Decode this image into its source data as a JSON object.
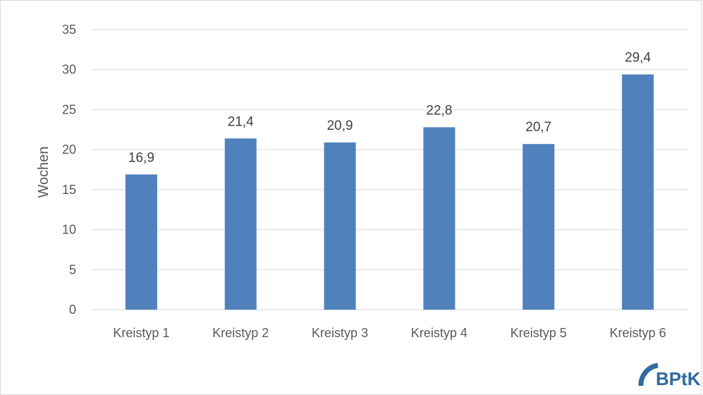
{
  "chart_data": {
    "type": "bar",
    "categories": [
      "Kreistyp 1",
      "Kreistyp 2",
      "Kreistyp 3",
      "Kreistyp 4",
      "Kreistyp 5",
      "Kreistyp 6"
    ],
    "values": [
      16.9,
      21.4,
      20.9,
      22.8,
      20.7,
      29.4
    ],
    "data_labels": [
      "16,9",
      "21,4",
      "20,9",
      "22,8",
      "20,7",
      "29,4"
    ],
    "title": "",
    "xlabel": "",
    "ylabel": "Wochen",
    "ylim": [
      0,
      35
    ],
    "yticks": [
      0,
      5,
      10,
      15,
      20,
      25,
      30,
      35
    ],
    "grid": true,
    "legend": "none",
    "bar_color": "#4f81bd",
    "grid_color": "#d9d9d9"
  },
  "logo": {
    "text": "BPtK",
    "color": "#2f6a9e"
  }
}
